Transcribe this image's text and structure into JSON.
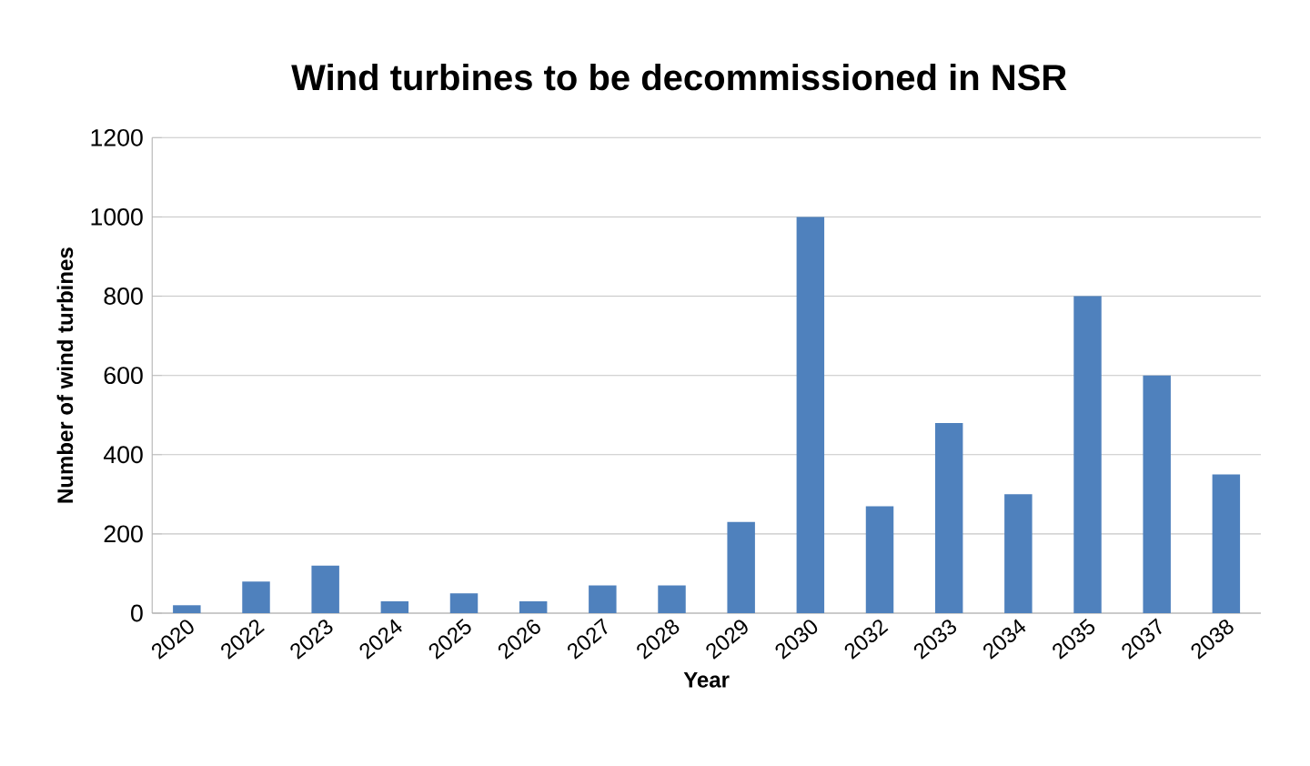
{
  "chart_data": {
    "type": "bar",
    "title": "Wind turbines to be decommissioned in NSR",
    "xlabel": "Year",
    "ylabel": "Number of wind turbines",
    "categories": [
      "2020",
      "2022",
      "2023",
      "2024",
      "2025",
      "2026",
      "2027",
      "2028",
      "2029",
      "2030",
      "2032",
      "2033",
      "2034",
      "2035",
      "2037",
      "2038"
    ],
    "values": [
      20,
      80,
      120,
      30,
      50,
      30,
      70,
      70,
      230,
      1000,
      270,
      480,
      300,
      800,
      600,
      350
    ],
    "color": "#4f81bd",
    "ylim": [
      0,
      1200
    ],
    "yticks": [
      0,
      200,
      400,
      600,
      800,
      1000,
      1200
    ],
    "grid": "y"
  }
}
